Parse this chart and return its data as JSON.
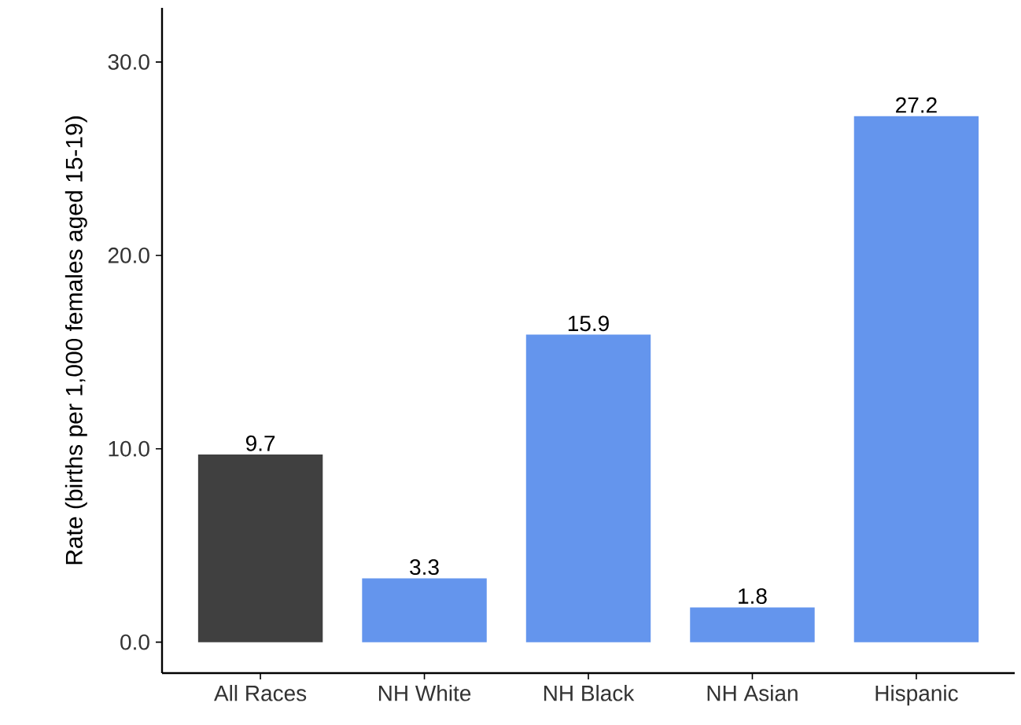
{
  "chart_data": {
    "type": "bar",
    "ylabel": "Rate (births per 1,000 females aged 15-19)",
    "categories": [
      "All Races",
      "NH White",
      "NH Black",
      "NH Asian",
      "Hispanic"
    ],
    "values": [
      9.7,
      3.3,
      15.9,
      1.8,
      27.2
    ],
    "colors": [
      "#404040",
      "#6495ed",
      "#6495ed",
      "#6495ed",
      "#6495ed"
    ],
    "ylim": [
      -1.6,
      32.8
    ],
    "yticks": [
      {
        "value": 0,
        "label": "0.0"
      },
      {
        "value": 10,
        "label": "10.0"
      },
      {
        "value": 20,
        "label": "20.0"
      },
      {
        "value": 30,
        "label": "30.0"
      }
    ],
    "data_labels": true,
    "grid": false
  }
}
